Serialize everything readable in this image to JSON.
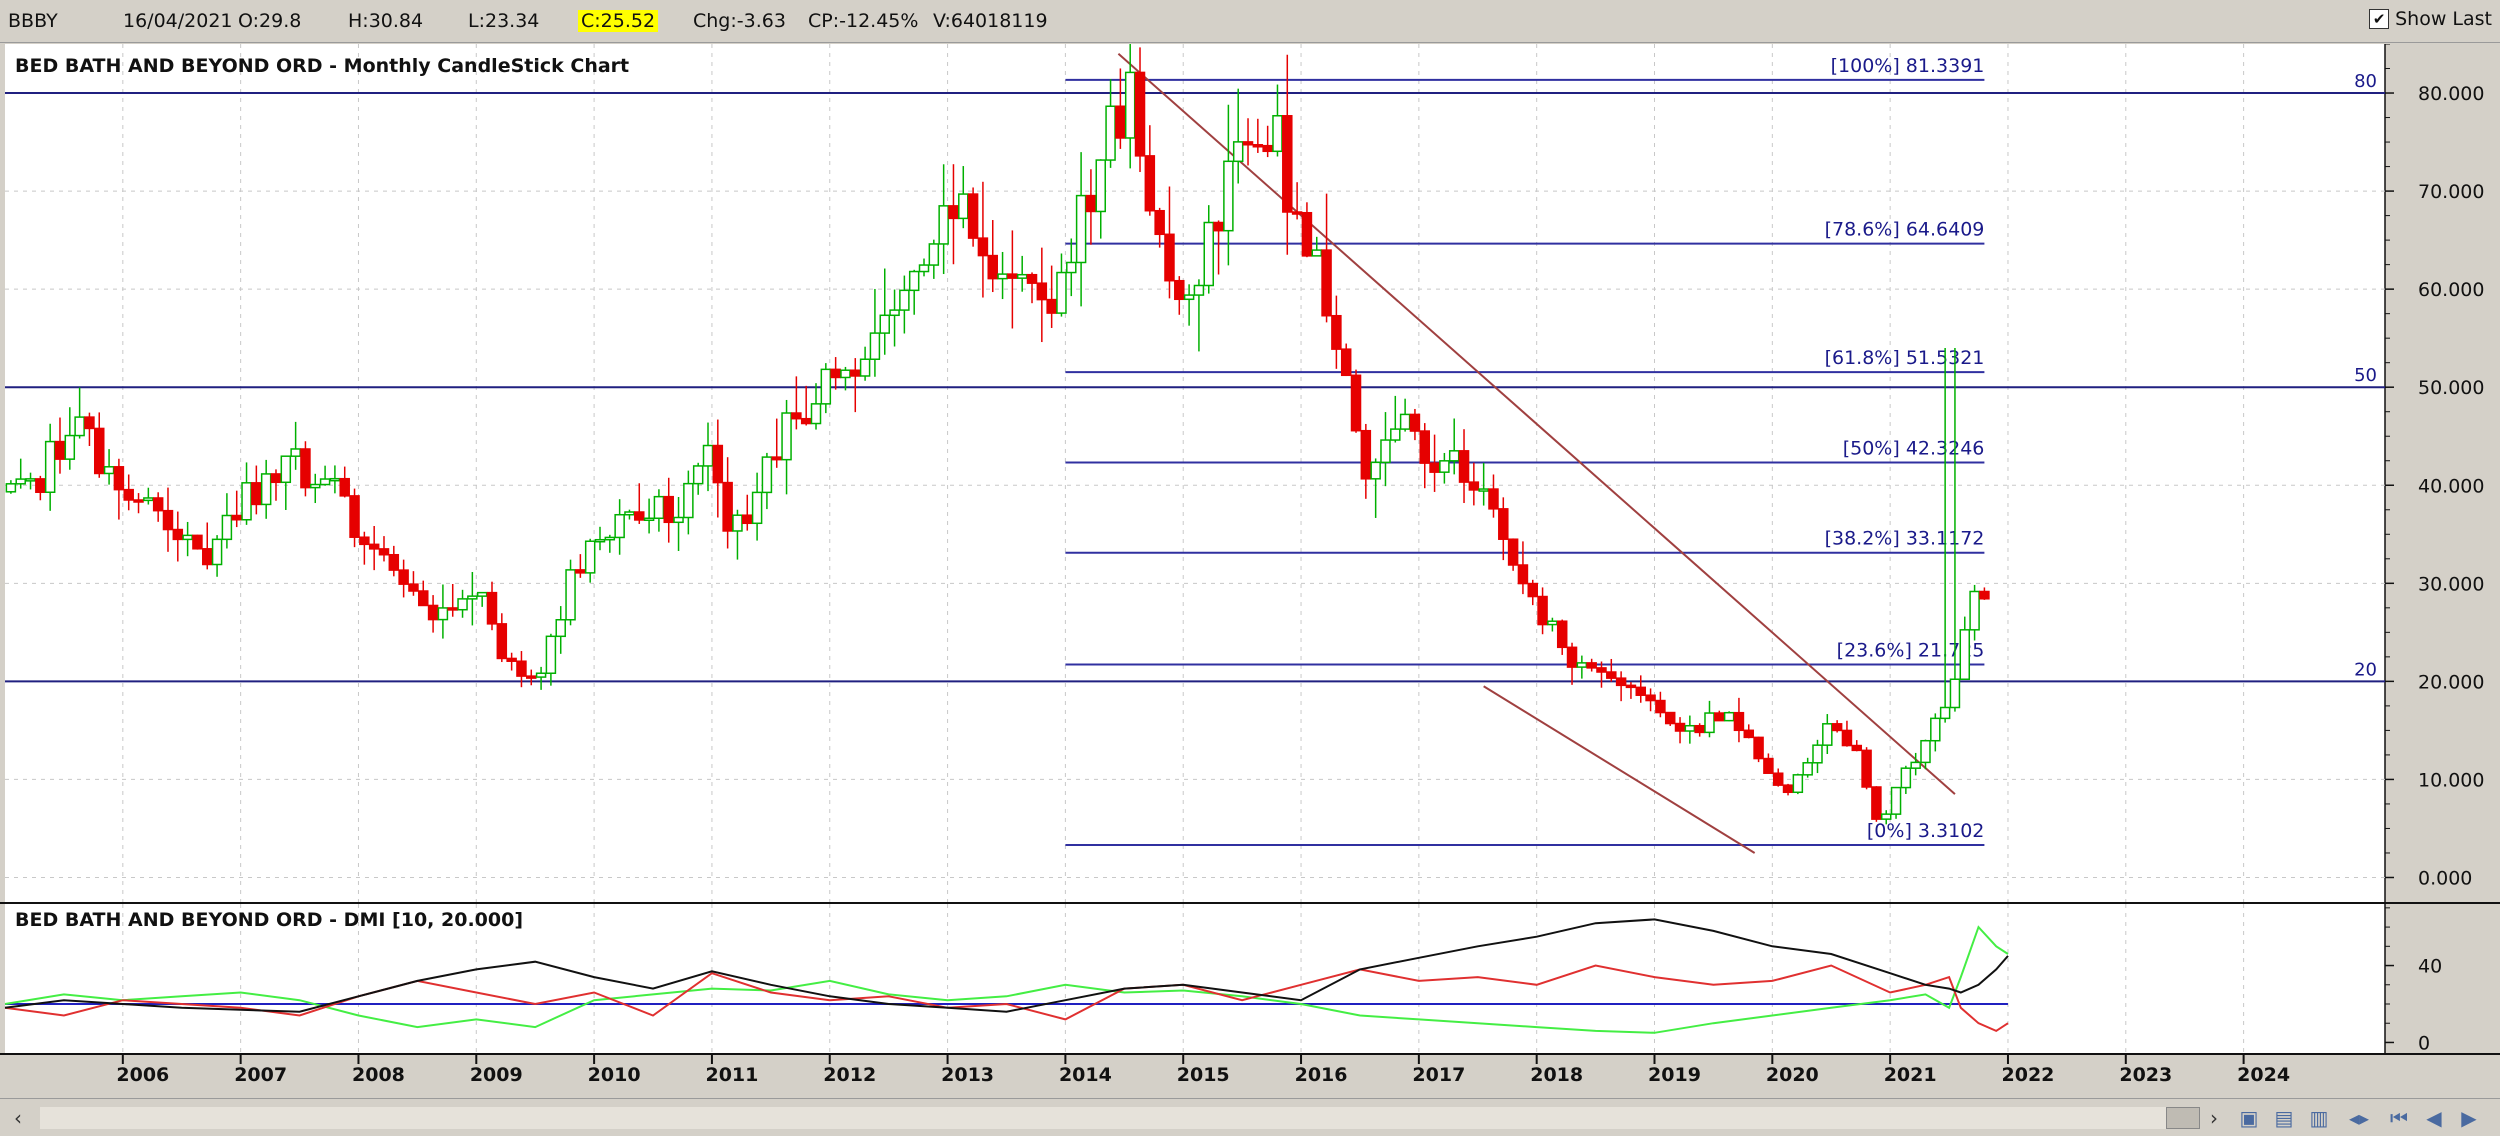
{
  "toolbar": {
    "symbol": "BBBY",
    "date": "16/04/2021",
    "open": "O:29.8",
    "high": "H:30.84",
    "low": "L:23.34",
    "close": "C:25.52",
    "change": "Chg:-3.63",
    "change_pct": "CP:-12.45%",
    "volume": "V:64018119",
    "show_last_label": "Show Last",
    "show_last_checked": true
  },
  "colors": {
    "background": "#ffffff",
    "grid": "#c8c8c8",
    "up": "#00b000",
    "down": "#e60000",
    "level_line": "#202080",
    "fib_line": "#3030a0",
    "trendline": "#a04040",
    "dmi_plus": "#44ee44",
    "dmi_minus": "#e03030",
    "adx": "#111111"
  },
  "chart_data": [
    {
      "type": "candlestick",
      "title": "BED BATH AND BEYOND ORD - Monthly CandleStick Chart",
      "x_ticks": [
        "2006",
        "2007",
        "2008",
        "2009",
        "2010",
        "2011",
        "2012",
        "2013",
        "2014",
        "2015",
        "2016",
        "2017",
        "2018",
        "2019",
        "2020",
        "2021",
        "2022",
        "2023",
        "2024"
      ],
      "y_ticks": [
        "0.000",
        "10.000",
        "20.000",
        "30.000",
        "40.000",
        "50.000",
        "60.000",
        "70.000",
        "80.000"
      ],
      "ylim": [
        -2.5,
        85
      ],
      "xlim": [
        2005.0,
        2025.2
      ],
      "horizontal_levels": [
        {
          "value": 80,
          "label": "80"
        },
        {
          "value": 50,
          "label": "50"
        },
        {
          "value": 20,
          "label": "20"
        }
      ],
      "fibonacci": {
        "x_start": 2014.0,
        "x_end": 2021.8,
        "levels": [
          {
            "value": 81.3391,
            "label": "[100%] 81.3391"
          },
          {
            "value": 64.6409,
            "label": "[78.6%] 64.6409"
          },
          {
            "value": 51.5321,
            "label": "[61.8%] 51.5321"
          },
          {
            "value": 42.3246,
            "label": "[50%] 42.3246"
          },
          {
            "value": 33.1172,
            "label": "[38.2%] 33.1172"
          },
          {
            "value": 21.725,
            "label": "[23.6%] 21.725"
          },
          {
            "value": 3.3102,
            "label": "[0%] 3.3102"
          }
        ]
      },
      "trendlines": [
        {
          "x1": 2014.45,
          "y1": 84.0,
          "x2": 2021.55,
          "y2": 8.5
        },
        {
          "x1": 2017.55,
          "y1": 19.5,
          "x2": 2019.85,
          "y2": 2.5
        }
      ],
      "anchors": [
        [
          2005.0,
          39
        ],
        [
          2005.3,
          41
        ],
        [
          2005.6,
          46
        ],
        [
          2006.0,
          38
        ],
        [
          2006.4,
          36
        ],
        [
          2006.7,
          33
        ],
        [
          2007.0,
          38
        ],
        [
          2007.4,
          42
        ],
        [
          2007.8,
          40
        ],
        [
          2008.0,
          35
        ],
        [
          2008.3,
          32
        ],
        [
          2008.6,
          27
        ],
        [
          2009.0,
          30
        ],
        [
          2009.2,
          22
        ],
        [
          2009.5,
          20
        ],
        [
          2009.8,
          30
        ],
        [
          2010.1,
          36
        ],
        [
          2010.4,
          38
        ],
        [
          2010.7,
          38
        ],
        [
          2011.0,
          45
        ],
        [
          2011.1,
          36
        ],
        [
          2011.3,
          37
        ],
        [
          2011.6,
          45
        ],
        [
          2011.9,
          50
        ],
        [
          2012.2,
          51
        ],
        [
          2012.6,
          58
        ],
        [
          2012.9,
          63
        ],
        [
          2013.1,
          70
        ],
        [
          2013.4,
          63
        ],
        [
          2013.7,
          58
        ],
        [
          2014.0,
          62
        ],
        [
          2014.3,
          73
        ],
        [
          2014.6,
          80
        ],
        [
          2014.8,
          63
        ],
        [
          2015.0,
          56
        ],
        [
          2015.2,
          65
        ],
        [
          2015.5,
          78
        ],
        [
          2015.8,
          74
        ],
        [
          2016.0,
          66
        ],
        [
          2016.3,
          56
        ],
        [
          2016.55,
          42
        ],
        [
          2016.8,
          48
        ],
        [
          2017.0,
          44
        ],
        [
          2017.4,
          41
        ],
        [
          2017.7,
          36
        ],
        [
          2017.9,
          29
        ],
        [
          2018.1,
          26
        ],
        [
          2018.3,
          22
        ],
        [
          2018.6,
          21
        ],
        [
          2019.0,
          17
        ],
        [
          2019.3,
          15
        ],
        [
          2019.6,
          17
        ],
        [
          2019.9,
          12
        ],
        [
          2020.1,
          8
        ],
        [
          2020.3,
          12
        ],
        [
          2020.5,
          16
        ],
        [
          2020.75,
          12
        ],
        [
          2020.9,
          5
        ],
        [
          2021.1,
          10
        ],
        [
          2021.3,
          14
        ],
        [
          2021.55,
          20
        ],
        [
          2021.75,
          30
        ],
        [
          2021.85,
          25
        ]
      ]
    },
    {
      "type": "line",
      "title": "BED BATH AND BEYOND ORD - DMI [10, 20.000]",
      "y_ticks": [
        "40",
        "0"
      ],
      "ylim": [
        -6,
        72
      ],
      "reference_level": 20,
      "series": [
        {
          "role": "plus_di",
          "values": [
            [
              2005.0,
              20
            ],
            [
              2005.5,
              25
            ],
            [
              2006.0,
              22
            ],
            [
              2006.5,
              24
            ],
            [
              2007.0,
              26
            ],
            [
              2007.5,
              22
            ],
            [
              2008.0,
              14
            ],
            [
              2008.5,
              8
            ],
            [
              2009.0,
              12
            ],
            [
              2009.5,
              8
            ],
            [
              2010.0,
              22
            ],
            [
              2010.5,
              25
            ],
            [
              2011.0,
              28
            ],
            [
              2011.5,
              27
            ],
            [
              2012.0,
              32
            ],
            [
              2012.5,
              25
            ],
            [
              2013.0,
              22
            ],
            [
              2013.5,
              24
            ],
            [
              2014.0,
              30
            ],
            [
              2014.5,
              26
            ],
            [
              2015.0,
              27
            ],
            [
              2015.5,
              24
            ],
            [
              2016.0,
              20
            ],
            [
              2016.5,
              14
            ],
            [
              2017.0,
              12
            ],
            [
              2017.5,
              10
            ],
            [
              2018.0,
              8
            ],
            [
              2018.5,
              6
            ],
            [
              2019.0,
              5
            ],
            [
              2019.5,
              10
            ],
            [
              2020.0,
              14
            ],
            [
              2020.5,
              18
            ],
            [
              2021.0,
              22
            ],
            [
              2021.3,
              25
            ],
            [
              2021.5,
              18
            ],
            [
              2021.6,
              34
            ],
            [
              2021.75,
              60
            ],
            [
              2021.9,
              50
            ],
            [
              2022.0,
              46
            ]
          ]
        },
        {
          "role": "minus_di",
          "values": [
            [
              2005.0,
              18
            ],
            [
              2005.5,
              14
            ],
            [
              2006.0,
              22
            ],
            [
              2006.5,
              20
            ],
            [
              2007.0,
              18
            ],
            [
              2007.5,
              14
            ],
            [
              2008.0,
              24
            ],
            [
              2008.5,
              32
            ],
            [
              2009.0,
              26
            ],
            [
              2009.5,
              20
            ],
            [
              2010.0,
              26
            ],
            [
              2010.5,
              14
            ],
            [
              2011.0,
              36
            ],
            [
              2011.5,
              26
            ],
            [
              2012.0,
              22
            ],
            [
              2012.5,
              24
            ],
            [
              2013.0,
              18
            ],
            [
              2013.5,
              20
            ],
            [
              2014.0,
              12
            ],
            [
              2014.5,
              28
            ],
            [
              2015.0,
              30
            ],
            [
              2015.5,
              22
            ],
            [
              2016.0,
              30
            ],
            [
              2016.5,
              38
            ],
            [
              2017.0,
              32
            ],
            [
              2017.5,
              34
            ],
            [
              2018.0,
              30
            ],
            [
              2018.5,
              40
            ],
            [
              2019.0,
              34
            ],
            [
              2019.5,
              30
            ],
            [
              2020.0,
              32
            ],
            [
              2020.5,
              40
            ],
            [
              2021.0,
              26
            ],
            [
              2021.3,
              30
            ],
            [
              2021.5,
              34
            ],
            [
              2021.6,
              18
            ],
            [
              2021.75,
              10
            ],
            [
              2021.9,
              6
            ],
            [
              2022.0,
              10
            ]
          ]
        },
        {
          "role": "adx",
          "values": [
            [
              2005.0,
              18
            ],
            [
              2005.5,
              22
            ],
            [
              2006.0,
              20
            ],
            [
              2006.5,
              18
            ],
            [
              2007.0,
              17
            ],
            [
              2007.5,
              16
            ],
            [
              2008.0,
              24
            ],
            [
              2008.5,
              32
            ],
            [
              2009.0,
              38
            ],
            [
              2009.5,
              42
            ],
            [
              2010.0,
              34
            ],
            [
              2010.5,
              28
            ],
            [
              2011.0,
              37
            ],
            [
              2011.5,
              30
            ],
            [
              2012.0,
              24
            ],
            [
              2012.5,
              20
            ],
            [
              2013.0,
              18
            ],
            [
              2013.5,
              16
            ],
            [
              2014.0,
              22
            ],
            [
              2014.5,
              28
            ],
            [
              2015.0,
              30
            ],
            [
              2015.5,
              26
            ],
            [
              2016.0,
              22
            ],
            [
              2016.5,
              38
            ],
            [
              2017.0,
              44
            ],
            [
              2017.5,
              50
            ],
            [
              2018.0,
              55
            ],
            [
              2018.5,
              62
            ],
            [
              2019.0,
              64
            ],
            [
              2019.5,
              58
            ],
            [
              2020.0,
              50
            ],
            [
              2020.5,
              46
            ],
            [
              2021.0,
              36
            ],
            [
              2021.3,
              30
            ],
            [
              2021.5,
              28
            ],
            [
              2021.6,
              26
            ],
            [
              2021.75,
              30
            ],
            [
              2021.9,
              38
            ],
            [
              2022.0,
              45
            ]
          ]
        }
      ]
    }
  ]
}
